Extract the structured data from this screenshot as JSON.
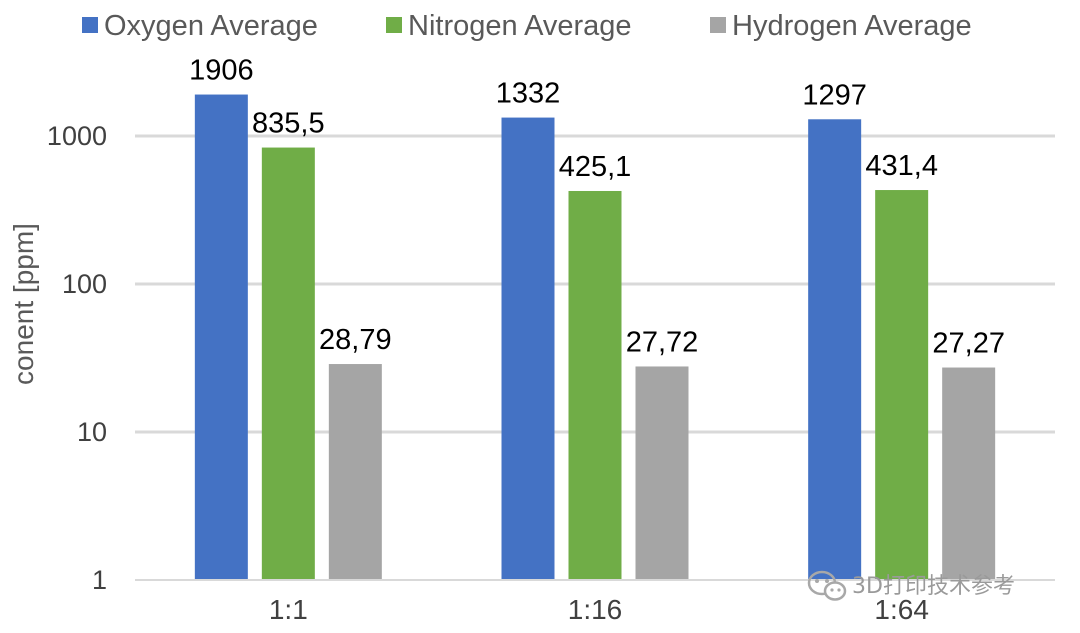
{
  "chart_data": {
    "type": "bar",
    "title": "",
    "xlabel": "",
    "ylabel": "conent [ppm]",
    "yscale": "log",
    "ylim": [
      1,
      2000
    ],
    "yticks": [
      {
        "value": 1,
        "label": "1"
      },
      {
        "value": 10,
        "label": "10"
      },
      {
        "value": 100,
        "label": "100"
      },
      {
        "value": 1000,
        "label": "1000"
      }
    ],
    "grid": true,
    "legend": "top",
    "categories": [
      "1:1",
      "1:16",
      "1:64"
    ],
    "series": [
      {
        "name": "Oxygen Average",
        "color": "#4472c4",
        "values": [
          1906,
          1332,
          1297
        ],
        "labels": [
          "1906",
          "1332",
          "1297"
        ]
      },
      {
        "name": "Nitrogen Average",
        "color": "#70ad47",
        "values": [
          835.5,
          425.1,
          431.4
        ],
        "labels": [
          "835,5",
          "425,1",
          "431,4"
        ]
      },
      {
        "name": "Hydrogen Average",
        "color": "#a5a5a5",
        "values": [
          28.79,
          27.72,
          27.27
        ],
        "labels": [
          "28,79",
          "27,72",
          "27,27"
        ]
      }
    ]
  },
  "watermark": {
    "text": "3D打印技术参考",
    "icon": "wechat-icon"
  }
}
